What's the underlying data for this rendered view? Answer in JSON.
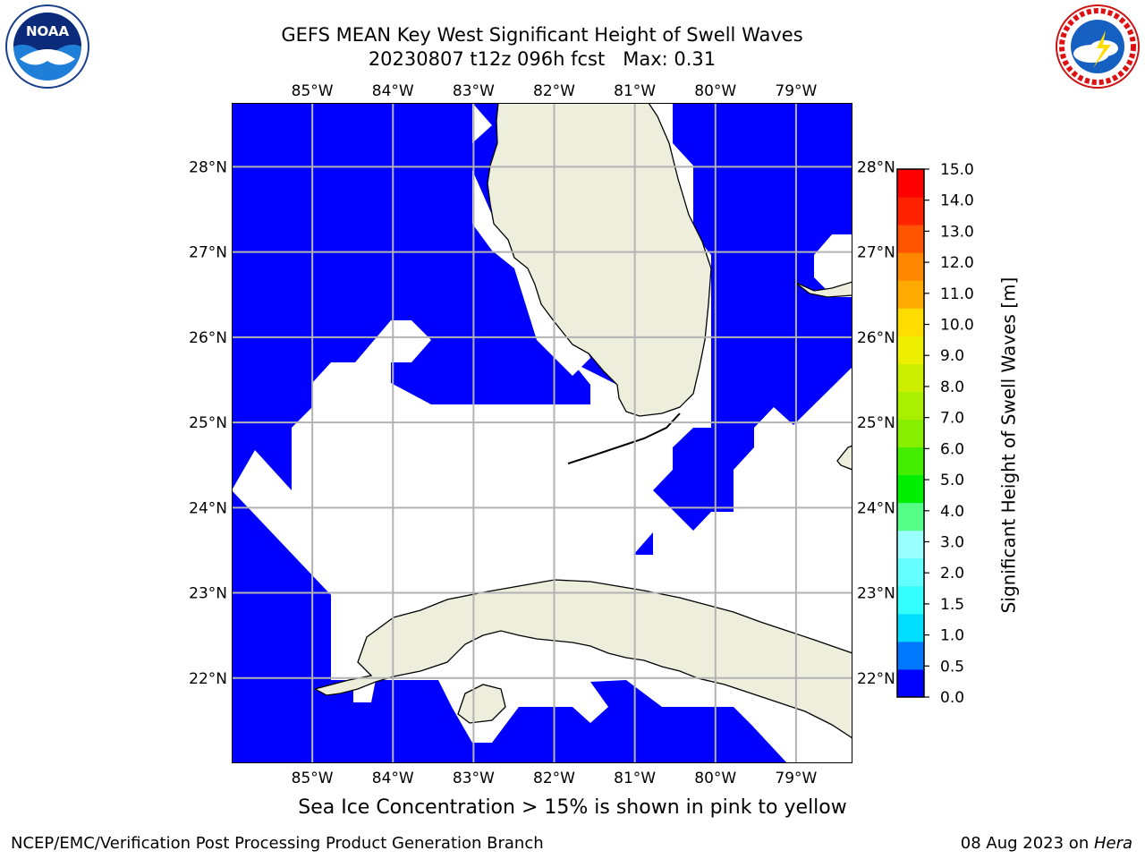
{
  "header": {
    "title_line1": "GEFS MEAN Key West Significant Height of Swell Waves",
    "title_line2": "20230807 t12z 096h fcst   Max: 0.31"
  },
  "logos": {
    "left": {
      "icon": "noaa-logo-icon",
      "text": "NOAA"
    },
    "right": {
      "icon": "nws-logo-icon",
      "text": "NATIONAL WEATHER SERVICE"
    }
  },
  "map": {
    "lon_labels": [
      "85°W",
      "84°W",
      "83°W",
      "82°W",
      "81°W",
      "80°W",
      "79°W"
    ],
    "lat_labels": [
      "28°N",
      "27°N",
      "26°N",
      "25°N",
      "24°N",
      "23°N",
      "22°N"
    ],
    "lon_values": [
      -85,
      -84,
      -83,
      -82,
      -81,
      -80,
      -79
    ],
    "lat_values": [
      28,
      27,
      26,
      25,
      24,
      23,
      22
    ],
    "extent": {
      "lon_min": -86.0,
      "lon_max": -78.3,
      "lat_min": 21.0,
      "lat_max": 28.75
    },
    "colors": {
      "ocean_fill": "#0000ff",
      "land": "#eeeedd",
      "grid": "#b3b3b3"
    }
  },
  "colorbar": {
    "label": "Significant Height of Swell Waves [m]",
    "ticks": [
      "0.0",
      "0.5",
      "1.0",
      "1.5",
      "2.0",
      "3.0",
      "4.0",
      "5.0",
      "6.0",
      "7.0",
      "8.0",
      "9.0",
      "10.0",
      "11.0",
      "12.0",
      "13.0",
      "14.0",
      "15.0"
    ],
    "colors": [
      "#0000ff",
      "#0077ff",
      "#00ddff",
      "#33ffff",
      "#66ffff",
      "#99ffff",
      "#55ff88",
      "#00ee00",
      "#44ee00",
      "#88ee00",
      "#aaee00",
      "#ccee00",
      "#eeee00",
      "#ffdd00",
      "#ffaa00",
      "#ff8800",
      "#ff5500",
      "#ff2200",
      "#ff0000"
    ]
  },
  "footer": {
    "sea_ice_note": "Sea Ice Concentration > 15% is shown in pink to yellow",
    "left": "NCEP/EMC/Verification Post Processing Product Generation Branch",
    "right_date": "08 Aug 2023 on ",
    "right_host": "Hera"
  }
}
